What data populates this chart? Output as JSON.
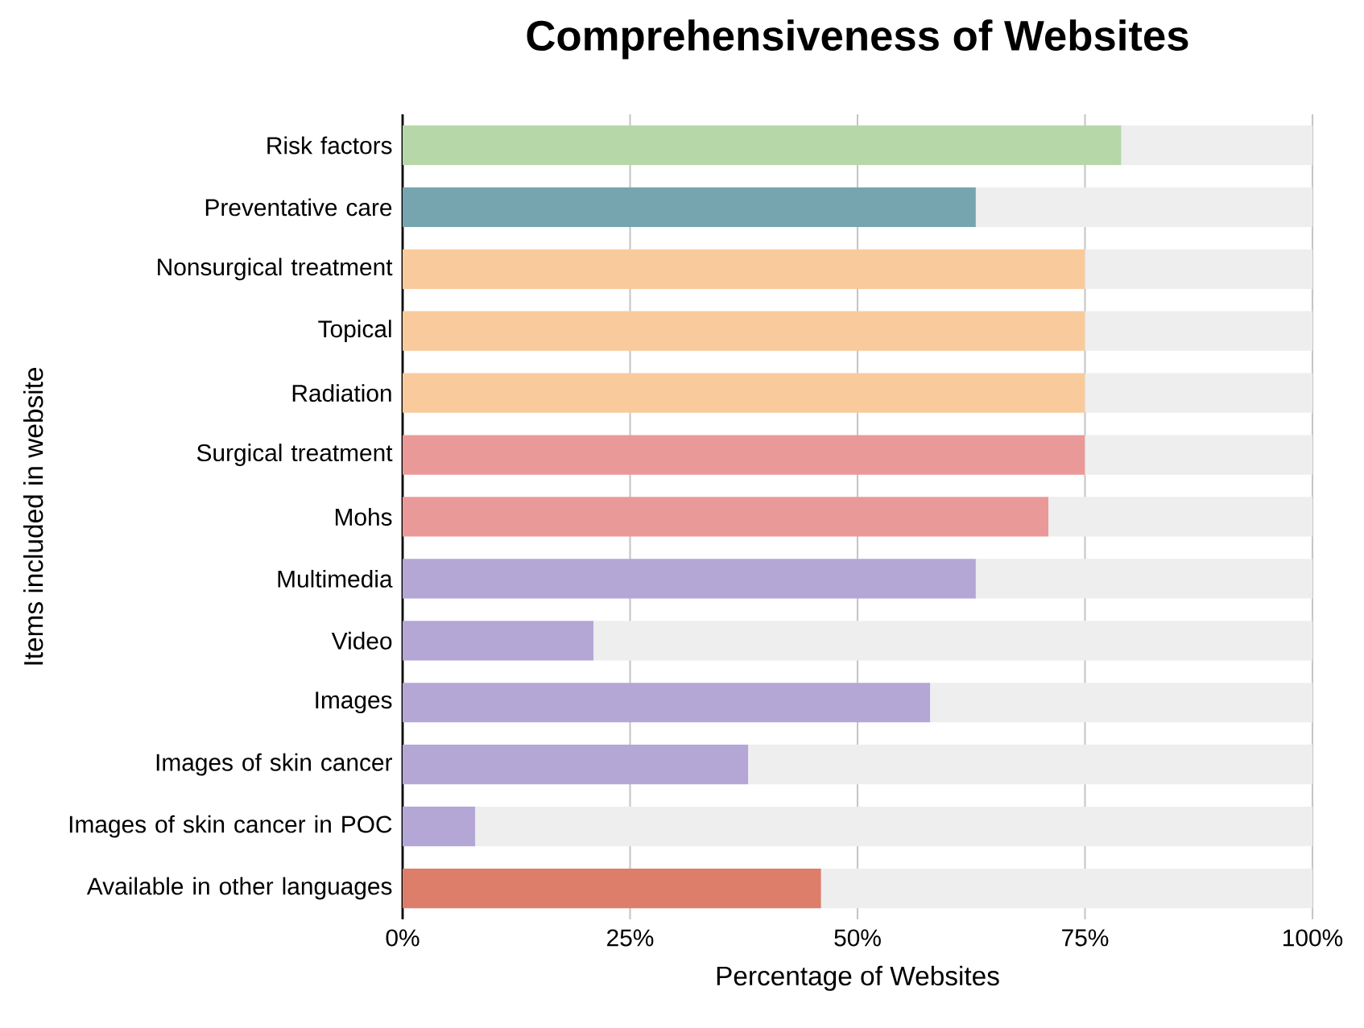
{
  "chart_data": {
    "type": "bar",
    "orientation": "horizontal",
    "stacked": true,
    "title": "Comprehensiveness of Websites",
    "xlabel": "Percentage of Websites",
    "ylabel": "Items included in website",
    "categories": [
      "Risk factors",
      "Preventative care",
      "Nonsurgical treatment",
      "Topical",
      "Radiation",
      "Surgical treatment",
      "Mohs",
      "Multimedia",
      "Video",
      "Images",
      "Images of skin cancer",
      "Images of skin cancer in POC",
      "Available in other languages"
    ],
    "series": [
      {
        "colors": [
          "#b6d7a8",
          "#76a5af",
          "#f9cb9c",
          "#f9cb9c",
          "#f9cb9c",
          "#ea9999",
          "#ea9999",
          "#b4a7d6",
          "#b4a7d6",
          "#b4a7d6",
          "#b4a7d6",
          "#b4a7d6",
          "#dd7e6b"
        ],
        "values": [
          79,
          63,
          75,
          75,
          75,
          75,
          71,
          63,
          21,
          58,
          38,
          8,
          46
        ]
      },
      {
        "color": "#eeeeee",
        "values": [
          21,
          37,
          25,
          25,
          25,
          25,
          29,
          37,
          79,
          42,
          62,
          92,
          54
        ]
      }
    ],
    "xlim": [
      0,
      100
    ],
    "xticks": [
      {
        "value": 0,
        "label": "0%"
      },
      {
        "value": 25,
        "label": "25%"
      },
      {
        "value": 50,
        "label": "50%"
      },
      {
        "value": 75,
        "label": "75%"
      },
      {
        "value": 100,
        "label": "100%"
      }
    ],
    "grid": "x"
  }
}
